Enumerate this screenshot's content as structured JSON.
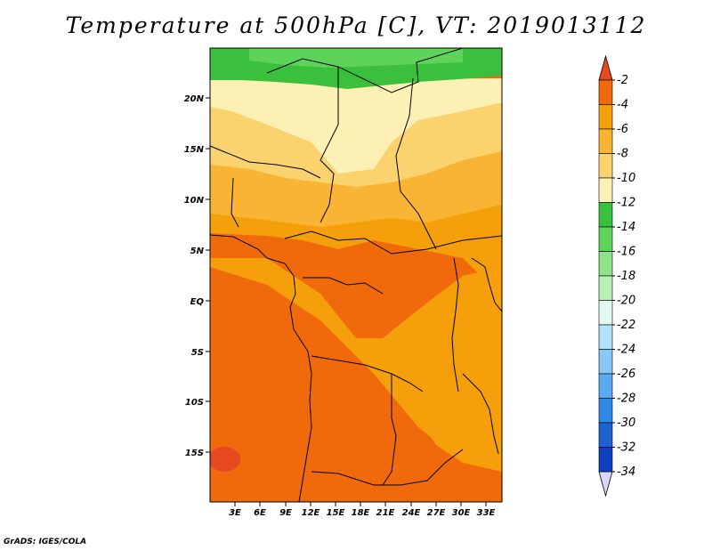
{
  "title": "Temperature at 500hPa [C], VT: 2019013112",
  "credit": "GrADS: IGES/COLA",
  "lat_labels": [
    "20N",
    "15N",
    "10N",
    "5N",
    "EQ",
    "5S",
    "10S",
    "15S"
  ],
  "lon_labels": [
    "3E",
    "6E",
    "9E",
    "12E",
    "15E",
    "18E",
    "21E",
    "24E",
    "27E",
    "30E",
    "33E"
  ],
  "colorbar": {
    "labels": [
      "-2",
      "-4",
      "-6",
      "-8",
      "-10",
      "-12",
      "-14",
      "-16",
      "-18",
      "-20",
      "-22",
      "-24",
      "-26",
      "-28",
      "-30",
      "-32",
      "-34"
    ],
    "colors": [
      "#d53a0c",
      "#f06a0c",
      "#f5a00a",
      "#f8b432",
      "#fad26e",
      "#fdf0b4",
      "#3ac03c",
      "#5ed35a",
      "#8fe28a",
      "#b9f0b3",
      "#e1fbf0",
      "#b4e2fb",
      "#88c8f5",
      "#5aaaf0",
      "#3088e6",
      "#1c62d0",
      "#0f3ebe",
      "#0a1870"
    ],
    "top_color": "#e8481e",
    "bottom_color": "#dad8fa"
  },
  "map_colors": {
    "c_m2": "#e8481e",
    "c_m4": "#f06a0c",
    "c_m6": "#f5a00a",
    "c_m8": "#f8b432",
    "c_m10": "#fad26e",
    "c_m12": "#fdf0b4",
    "c_m14": "#3ac03c",
    "c_m16": "#5ed35a"
  }
}
